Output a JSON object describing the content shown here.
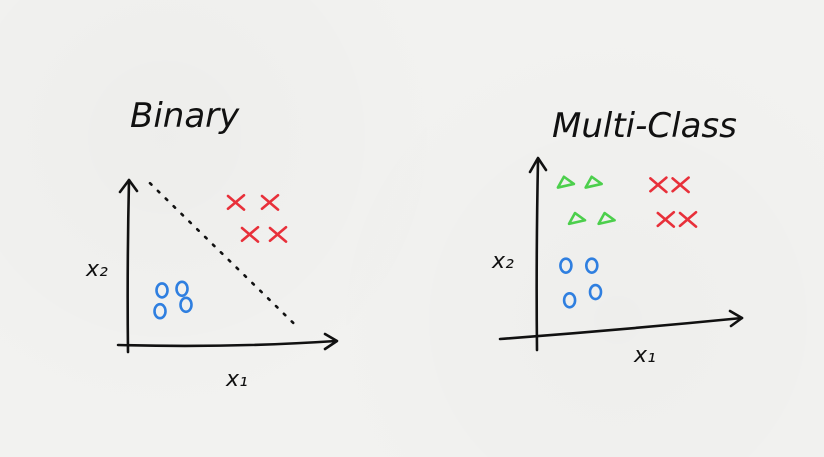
{
  "chart_data": [
    {
      "type": "scatter",
      "title": "Binary",
      "xlabel": "x₁",
      "ylabel": "x₂",
      "xlim": [
        0,
        10
      ],
      "ylim": [
        0,
        10
      ],
      "grid": false,
      "decision_boundary": {
        "style": "dotted",
        "color": "#111111",
        "points": [
          [
            1,
            9.8
          ],
          [
            8.3,
            0.9
          ]
        ]
      },
      "series": [
        {
          "marker": "circle",
          "color": "#2f7fe0",
          "points": [
            [
              1.6,
              3.1
            ],
            [
              2.6,
              3.2
            ],
            [
              1.5,
              1.8
            ],
            [
              2.8,
              2.2
            ]
          ]
        },
        {
          "marker": "x",
          "color": "#e8303a",
          "points": [
            [
              5.3,
              8.6
            ],
            [
              7.0,
              8.6
            ],
            [
              6.0,
              6.6
            ],
            [
              7.4,
              6.6
            ]
          ]
        }
      ]
    },
    {
      "type": "scatter",
      "title": "Multi-Class",
      "xlabel": "x₁",
      "ylabel": "x₂",
      "xlim": [
        0,
        10
      ],
      "ylim": [
        0,
        10
      ],
      "grid": false,
      "series": [
        {
          "marker": "triangle",
          "color": "#4ccf4c",
          "points": [
            [
              1.4,
              8.9
            ],
            [
              2.9,
              8.9
            ],
            [
              2.0,
              6.7
            ],
            [
              3.6,
              6.7
            ]
          ]
        },
        {
          "marker": "x",
          "color": "#e8303a",
          "points": [
            [
              6.4,
              8.8
            ],
            [
              7.6,
              8.8
            ],
            [
              6.8,
              6.7
            ],
            [
              8.0,
              6.7
            ]
          ]
        },
        {
          "marker": "circle",
          "color": "#2f7fe0",
          "points": [
            [
              1.4,
              3.9
            ],
            [
              2.8,
              3.9
            ],
            [
              1.6,
              1.8
            ],
            [
              3.0,
              2.3
            ]
          ]
        }
      ]
    }
  ]
}
